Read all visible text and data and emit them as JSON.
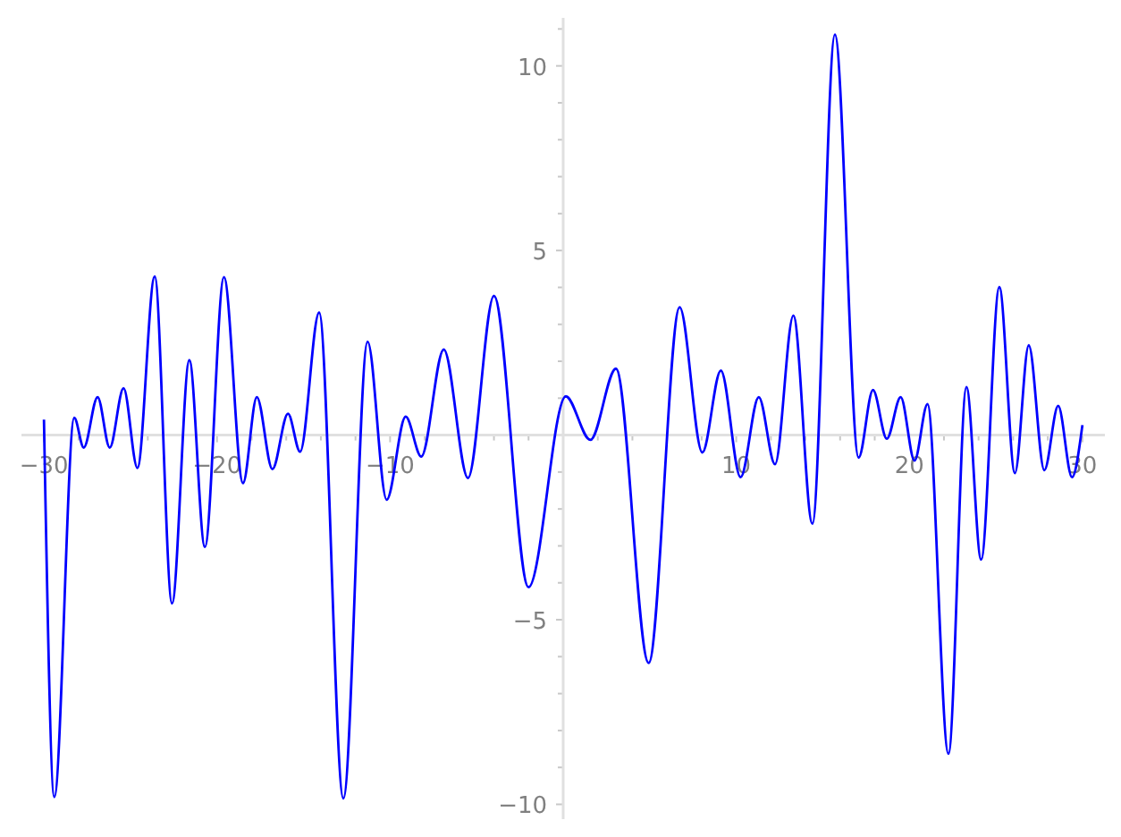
{
  "chart_data": {
    "type": "line",
    "color": "#0000ff",
    "marker": "none",
    "line_style": "solid",
    "xlim": [
      -31.3,
      31.3
    ],
    "ylim": [
      -10.4,
      11.3
    ],
    "xticks": [
      {
        "value": -30,
        "label": "−30"
      },
      {
        "value": -28,
        "label": null
      },
      {
        "value": -26,
        "label": null
      },
      {
        "value": -24,
        "label": null
      },
      {
        "value": -22,
        "label": null
      },
      {
        "value": -20,
        "label": "−20"
      },
      {
        "value": -18,
        "label": null
      },
      {
        "value": -16,
        "label": null
      },
      {
        "value": -14,
        "label": null
      },
      {
        "value": -12,
        "label": null
      },
      {
        "value": -10,
        "label": "−10"
      },
      {
        "value": -8,
        "label": null
      },
      {
        "value": -6,
        "label": null
      },
      {
        "value": -4,
        "label": null
      },
      {
        "value": -2,
        "label": null
      },
      {
        "value": 2,
        "label": null
      },
      {
        "value": 4,
        "label": null
      },
      {
        "value": 6,
        "label": null
      },
      {
        "value": 8,
        "label": null
      },
      {
        "value": 10,
        "label": "10"
      },
      {
        "value": 12,
        "label": null
      },
      {
        "value": 14,
        "label": null
      },
      {
        "value": 16,
        "label": null
      },
      {
        "value": 18,
        "label": null
      },
      {
        "value": 20,
        "label": "20"
      },
      {
        "value": 22,
        "label": null
      },
      {
        "value": 24,
        "label": null
      },
      {
        "value": 26,
        "label": null
      },
      {
        "value": 28,
        "label": null
      },
      {
        "value": 30,
        "label": "30"
      }
    ],
    "yticks": [
      {
        "value": -10,
        "label": "−10"
      },
      {
        "value": -9,
        "label": null
      },
      {
        "value": -8,
        "label": null
      },
      {
        "value": -7,
        "label": null
      },
      {
        "value": -6,
        "label": null
      },
      {
        "value": -5,
        "label": "−5"
      },
      {
        "value": -4,
        "label": null
      },
      {
        "value": -3,
        "label": null
      },
      {
        "value": -2,
        "label": null
      },
      {
        "value": -1,
        "label": null
      },
      {
        "value": 1,
        "label": null
      },
      {
        "value": 2,
        "label": null
      },
      {
        "value": 3,
        "label": null
      },
      {
        "value": 4,
        "label": null
      },
      {
        "value": 5,
        "label": "5"
      },
      {
        "value": 6,
        "label": null
      },
      {
        "value": 7,
        "label": null
      },
      {
        "value": 8,
        "label": null
      },
      {
        "value": 9,
        "label": null
      },
      {
        "value": 10,
        "label": "10"
      },
      {
        "value": 11,
        "label": null
      }
    ],
    "x": [
      -30,
      -29.4,
      -28.25,
      -27.7,
      -26.9,
      -26.2,
      -25.4,
      -24.6,
      -23.6,
      -22.6,
      -21.6,
      -20.7,
      -19.6,
      -18.5,
      -17.7,
      -16.8,
      -15.9,
      -15.2,
      -14.1,
      -12.7,
      -11.3,
      -10.2,
      -9.1,
      -8.2,
      -6.9,
      -5.5,
      -4.0,
      -2.0,
      0.15,
      1.57,
      3.05,
      4.94,
      6.73,
      8.04,
      9.11,
      10.25,
      11.3,
      12.24,
      13.3,
      14.4,
      15.7,
      17.07,
      17.9,
      18.7,
      19.5,
      20.3,
      21.05,
      22.26,
      23.3,
      24.15,
      25.2,
      26.1,
      26.9,
      27.8,
      28.6,
      29.4,
      30
    ],
    "values": [
      0.42,
      -9.8,
      0.47,
      -0.34,
      1.03,
      -0.34,
      1.27,
      -0.89,
      4.3,
      -4.56,
      2.03,
      -3.03,
      4.28,
      -1.3,
      1.03,
      -0.92,
      0.58,
      -0.45,
      3.32,
      -9.84,
      2.53,
      -1.75,
      0.5,
      -0.58,
      2.32,
      -1.16,
      3.77,
      -4.12,
      1.05,
      -0.13,
      1.8,
      -6.17,
      3.46,
      -0.47,
      1.75,
      -1.14,
      1.03,
      -0.79,
      3.24,
      -2.4,
      10.85,
      -0.61,
      1.22,
      -0.1,
      1.03,
      -0.69,
      0.84,
      -8.63,
      1.3,
      -3.37,
      4.01,
      -1.03,
      2.43,
      -0.95,
      0.79,
      -1.14,
      0.27
    ]
  }
}
